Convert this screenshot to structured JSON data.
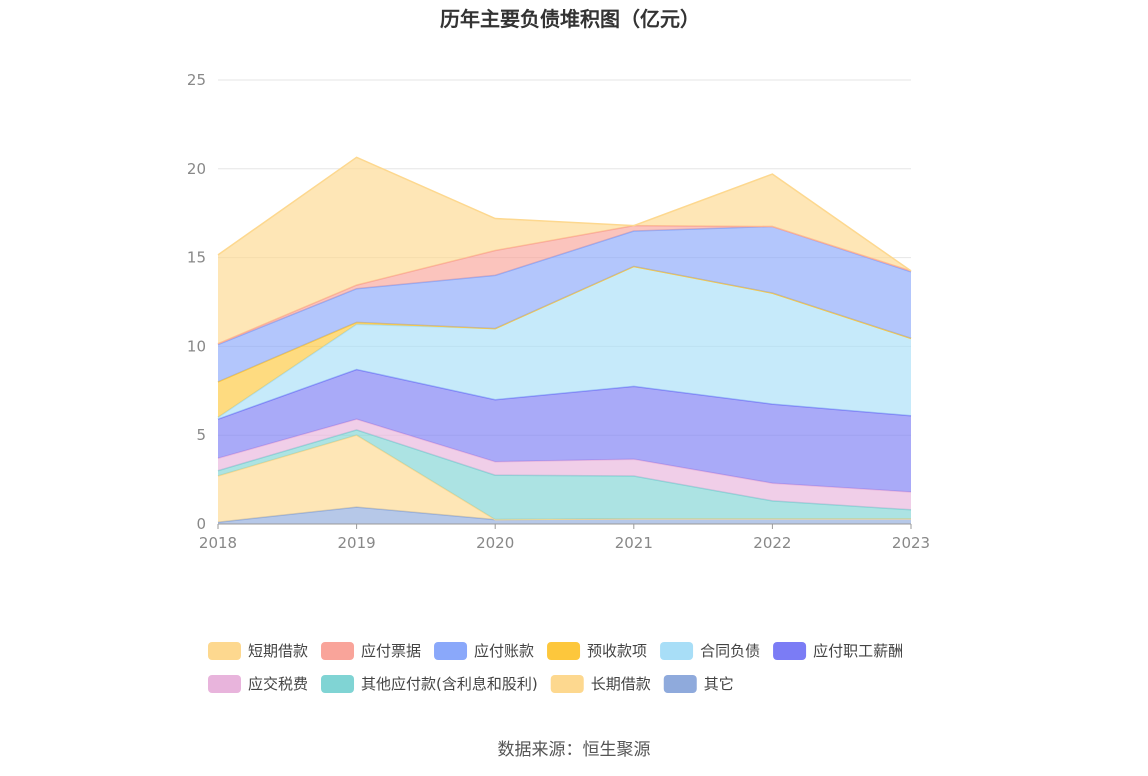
{
  "chart_data": {
    "type": "area",
    "stacked": true,
    "title": "历年主要负债堆积图（亿元）",
    "xlabel": "",
    "ylabel": "",
    "categories": [
      "2018",
      "2019",
      "2020",
      "2021",
      "2022",
      "2023"
    ],
    "ylim": [
      0,
      25
    ],
    "yticks": [
      0,
      5,
      10,
      15,
      20,
      25
    ],
    "grid": true,
    "legend_position": "bottom",
    "series": [
      {
        "name": "其它",
        "color": "#8faadc",
        "values": [
          0.1,
          0.95,
          0.25,
          0.3,
          0.3,
          0.3
        ]
      },
      {
        "name": "长期借款",
        "color": "#fdd88f",
        "values": [
          2.6,
          4.05,
          0,
          0,
          0,
          0
        ]
      },
      {
        "name": "其他应付款(含利息和股利)",
        "color": "#80d4d4",
        "values": [
          0.3,
          0.3,
          2.5,
          2.4,
          1.0,
          0.5
        ]
      },
      {
        "name": "应交税费",
        "color": "#e8b4dc",
        "values": [
          0.7,
          0.6,
          0.75,
          0.95,
          1.0,
          1.0
        ]
      },
      {
        "name": "应付职工薪酬",
        "color": "#7b7cf5",
        "values": [
          2.2,
          2.8,
          3.5,
          4.1,
          4.45,
          4.3
        ]
      },
      {
        "name": "合同负债",
        "color": "#a8def7",
        "values": [
          0.1,
          2.55,
          4.0,
          6.75,
          6.25,
          4.35
        ]
      },
      {
        "name": "预收款项",
        "color": "#fdc73c",
        "values": [
          2.0,
          0.1,
          0,
          0,
          0,
          0
        ]
      },
      {
        "name": "应付账款",
        "color": "#8aa8fa",
        "values": [
          2.1,
          1.9,
          3.0,
          2.0,
          3.75,
          3.75
        ]
      },
      {
        "name": "应付票据",
        "color": "#f9a49a",
        "values": [
          0.05,
          0.2,
          1.4,
          0.3,
          0,
          0.05
        ]
      },
      {
        "name": "短期借款",
        "color": "#fdd88f",
        "values": [
          5.0,
          7.2,
          1.8,
          0,
          2.95,
          0
        ]
      }
    ],
    "legend_order": [
      "短期借款",
      "应付票据",
      "应付账款",
      "预收款项",
      "合同负债",
      "应付职工薪酬",
      "应交税费",
      "其他应付款(含利息和股利)",
      "长期借款",
      "其它"
    ]
  },
  "source_text": "数据来源：恒生聚源"
}
